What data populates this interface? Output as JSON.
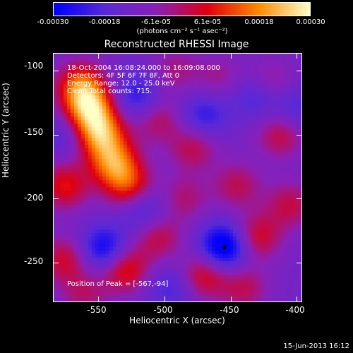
{
  "colorbar": {
    "ticks": [
      "-0.00030",
      "-0.00018",
      "-6.1e-05",
      "6.1e-05",
      "0.00018",
      "0.00030"
    ],
    "tick_values": [
      -0.0003,
      -0.00018,
      -6.1e-05,
      6.1e-05,
      0.00018,
      0.0003
    ],
    "unit": "(photons cm⁻² s⁻¹ asec⁻²)",
    "colors": [
      "#0000ff",
      "#5a2ad8",
      "#8a20b8",
      "#e00010",
      "#ff8a00",
      "#ffffc8"
    ]
  },
  "chart_data": {
    "type": "heatmap",
    "title": "Reconstructed RHESSI Image",
    "xlabel": "Heliocentric X (arcsec)",
    "ylabel": "Heliocentric Y (arcsec)",
    "xlim": [
      -584,
      -396
    ],
    "ylim": [
      -281,
      -86
    ],
    "x_ticks": [
      -550,
      -500,
      -450,
      -400
    ],
    "y_ticks": [
      -100,
      -150,
      -200,
      -250
    ],
    "peak": {
      "x": -567,
      "y": -94
    },
    "hotspots": [
      {
        "x": -563,
        "y": -112,
        "v": 0.00024
      },
      {
        "x": -556,
        "y": -130,
        "v": 0.0003
      },
      {
        "x": -548,
        "y": -150,
        "v": 0.00028
      },
      {
        "x": -538,
        "y": -172,
        "v": 0.00025
      },
      {
        "x": -575,
        "y": -190,
        "v": 0.00018
      },
      {
        "x": -527,
        "y": -190,
        "v": 0.00019
      },
      {
        "x": -505,
        "y": -138,
        "v": 0.00012
      },
      {
        "x": -492,
        "y": -100,
        "v": 9e-05
      },
      {
        "x": -459,
        "y": -105,
        "v": 8e-05
      },
      {
        "x": -478,
        "y": -160,
        "v": 0.00013
      },
      {
        "x": -420,
        "y": -110,
        "v": 0.00011
      },
      {
        "x": -412,
        "y": -150,
        "v": 0.00014
      },
      {
        "x": -445,
        "y": -190,
        "v": 0.00012
      },
      {
        "x": -430,
        "y": -230,
        "v": 0.00016
      },
      {
        "x": -405,
        "y": -205,
        "v": 0.00013
      },
      {
        "x": -505,
        "y": -230,
        "v": 0.00014
      },
      {
        "x": -530,
        "y": -255,
        "v": 0.0002
      },
      {
        "x": -575,
        "y": -248,
        "v": 0.00015
      },
      {
        "x": -470,
        "y": -260,
        "v": 0.00017
      },
      {
        "x": -440,
        "y": -270,
        "v": 0.00012
      },
      {
        "x": -560,
        "y": -275,
        "v": 0.0001
      },
      {
        "x": -485,
        "y": -200,
        "v": 0.0001
      }
    ],
    "coldspots": [
      {
        "x": -455,
        "y": -238,
        "v": -0.00026
      },
      {
        "x": -545,
        "y": -240,
        "v": -0.0002
      },
      {
        "x": -430,
        "y": -120,
        "v": -0.00012
      },
      {
        "x": -520,
        "y": -120,
        "v": -0.00014
      },
      {
        "x": -470,
        "y": -135,
        "v": -0.00013
      },
      {
        "x": -400,
        "y": -130,
        "v": -0.0001
      },
      {
        "x": -515,
        "y": -210,
        "v": -0.00012
      },
      {
        "x": -575,
        "y": -150,
        "v": -8e-05
      },
      {
        "x": -495,
        "y": -270,
        "v": -0.0001
      }
    ]
  },
  "info": {
    "line1": "18-Oct-2004 16:08:24.000 to 16:09:08.000",
    "line2": "Detectors: 4F 5F 6F 7F 8F, Att 0",
    "line3": "Energy Range: 12.0 - 25.0 keV",
    "line4": "Clean    Total counts: 715.",
    "peak_text": "Position of Peak = [-567,-94]"
  },
  "axes": {
    "x_tick_labels": [
      "-550",
      "-500",
      "-450",
      "-400"
    ],
    "y_tick_labels": [
      "-100",
      "-150",
      "-200",
      "-250"
    ]
  },
  "timestamp": "15-Jun-2013 16:12"
}
